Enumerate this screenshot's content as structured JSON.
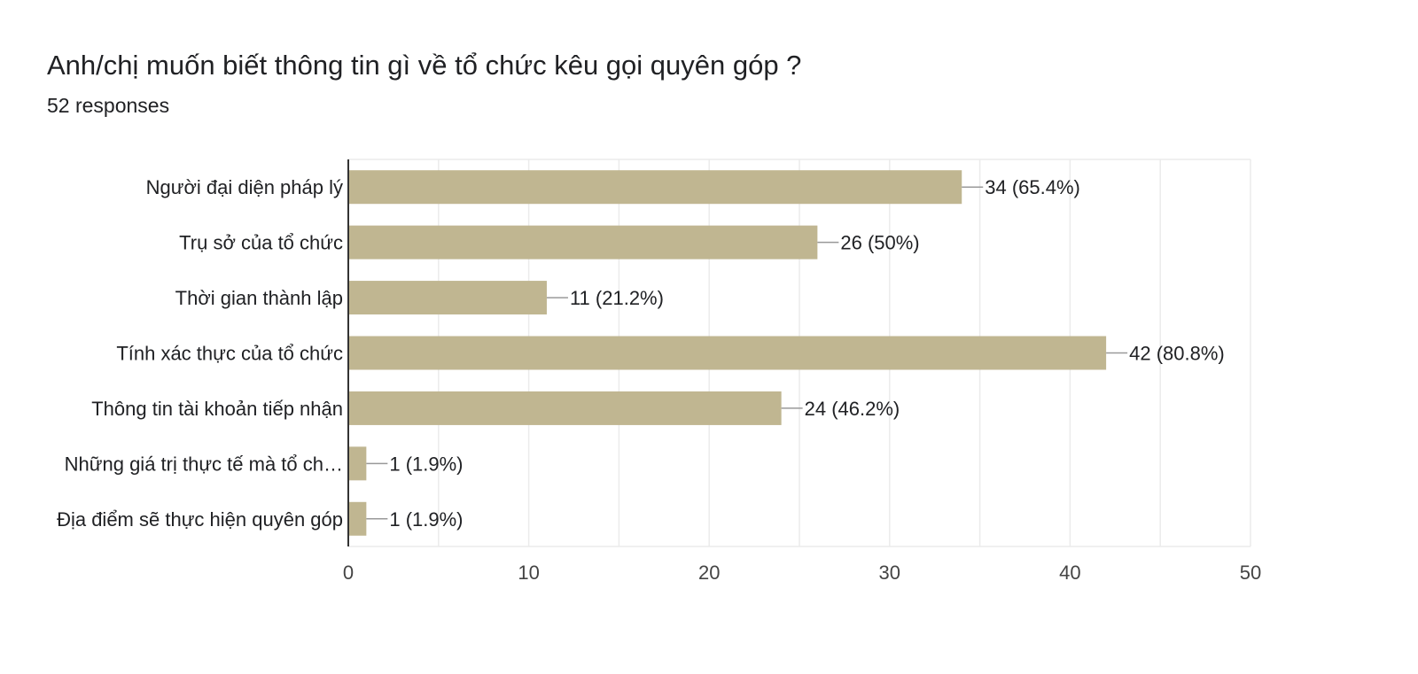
{
  "question": {
    "title": "Anh/chị muốn biết thông tin gì về tổ chức kêu gọi quyên góp ?",
    "responses": "52 responses"
  },
  "colors": {
    "bar": "#c0b691",
    "text": "#202124",
    "axis_text": "#444444",
    "grid": "#ebebeb",
    "axis_line": "#333333",
    "leader": "#999999"
  },
  "chart_data": {
    "type": "bar",
    "orientation": "horizontal",
    "categories": [
      "Người đại diện pháp lý",
      "Trụ sở của tổ chức",
      "Thời gian thành lập",
      "Tính xác thực của tổ chức",
      "Thông tin tài khoản tiếp nhận",
      "Những giá trị thực tế mà tổ ch…",
      "Địa điểm sẽ thực hiện quyên góp"
    ],
    "values": [
      34,
      26,
      11,
      42,
      24,
      1,
      1
    ],
    "data_labels": [
      "34 (65.4%)",
      "26 (50%)",
      "11 (21.2%)",
      "42 (80.8%)",
      "24 (46.2%)",
      "1 (1.9%)",
      "1 (1.9%)"
    ],
    "xlim": [
      0,
      50
    ],
    "x_ticks": [
      0,
      10,
      20,
      30,
      40,
      50
    ],
    "grid": true
  }
}
